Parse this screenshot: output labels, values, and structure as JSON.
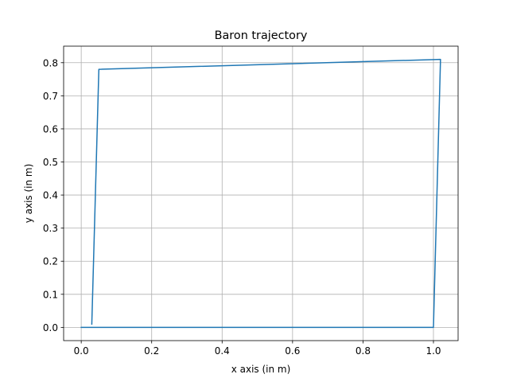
{
  "chart_data": {
    "type": "line",
    "title": "Baron trajectory",
    "xlabel": "x axis (in m)",
    "ylabel": "y axis (in m)",
    "xlim": [
      -0.05,
      1.07
    ],
    "ylim": [
      -0.04,
      0.85
    ],
    "xticks": [
      0.0,
      0.2,
      0.4,
      0.6,
      0.8,
      1.0
    ],
    "xtick_labels": [
      "0.0",
      "0.2",
      "0.4",
      "0.6",
      "0.8",
      "1.0"
    ],
    "yticks": [
      0.0,
      0.1,
      0.2,
      0.3,
      0.4,
      0.5,
      0.6,
      0.7,
      0.8
    ],
    "ytick_labels": [
      "0.0",
      "0.1",
      "0.2",
      "0.3",
      "0.4",
      "0.5",
      "0.6",
      "0.7",
      "0.8"
    ],
    "grid": true,
    "series": [
      {
        "color": "#1f77b4",
        "x": [
          0.0,
          1.0,
          1.02,
          0.05,
          0.03
        ],
        "y": [
          0.0,
          0.0,
          0.81,
          0.78,
          0.01
        ]
      }
    ]
  }
}
